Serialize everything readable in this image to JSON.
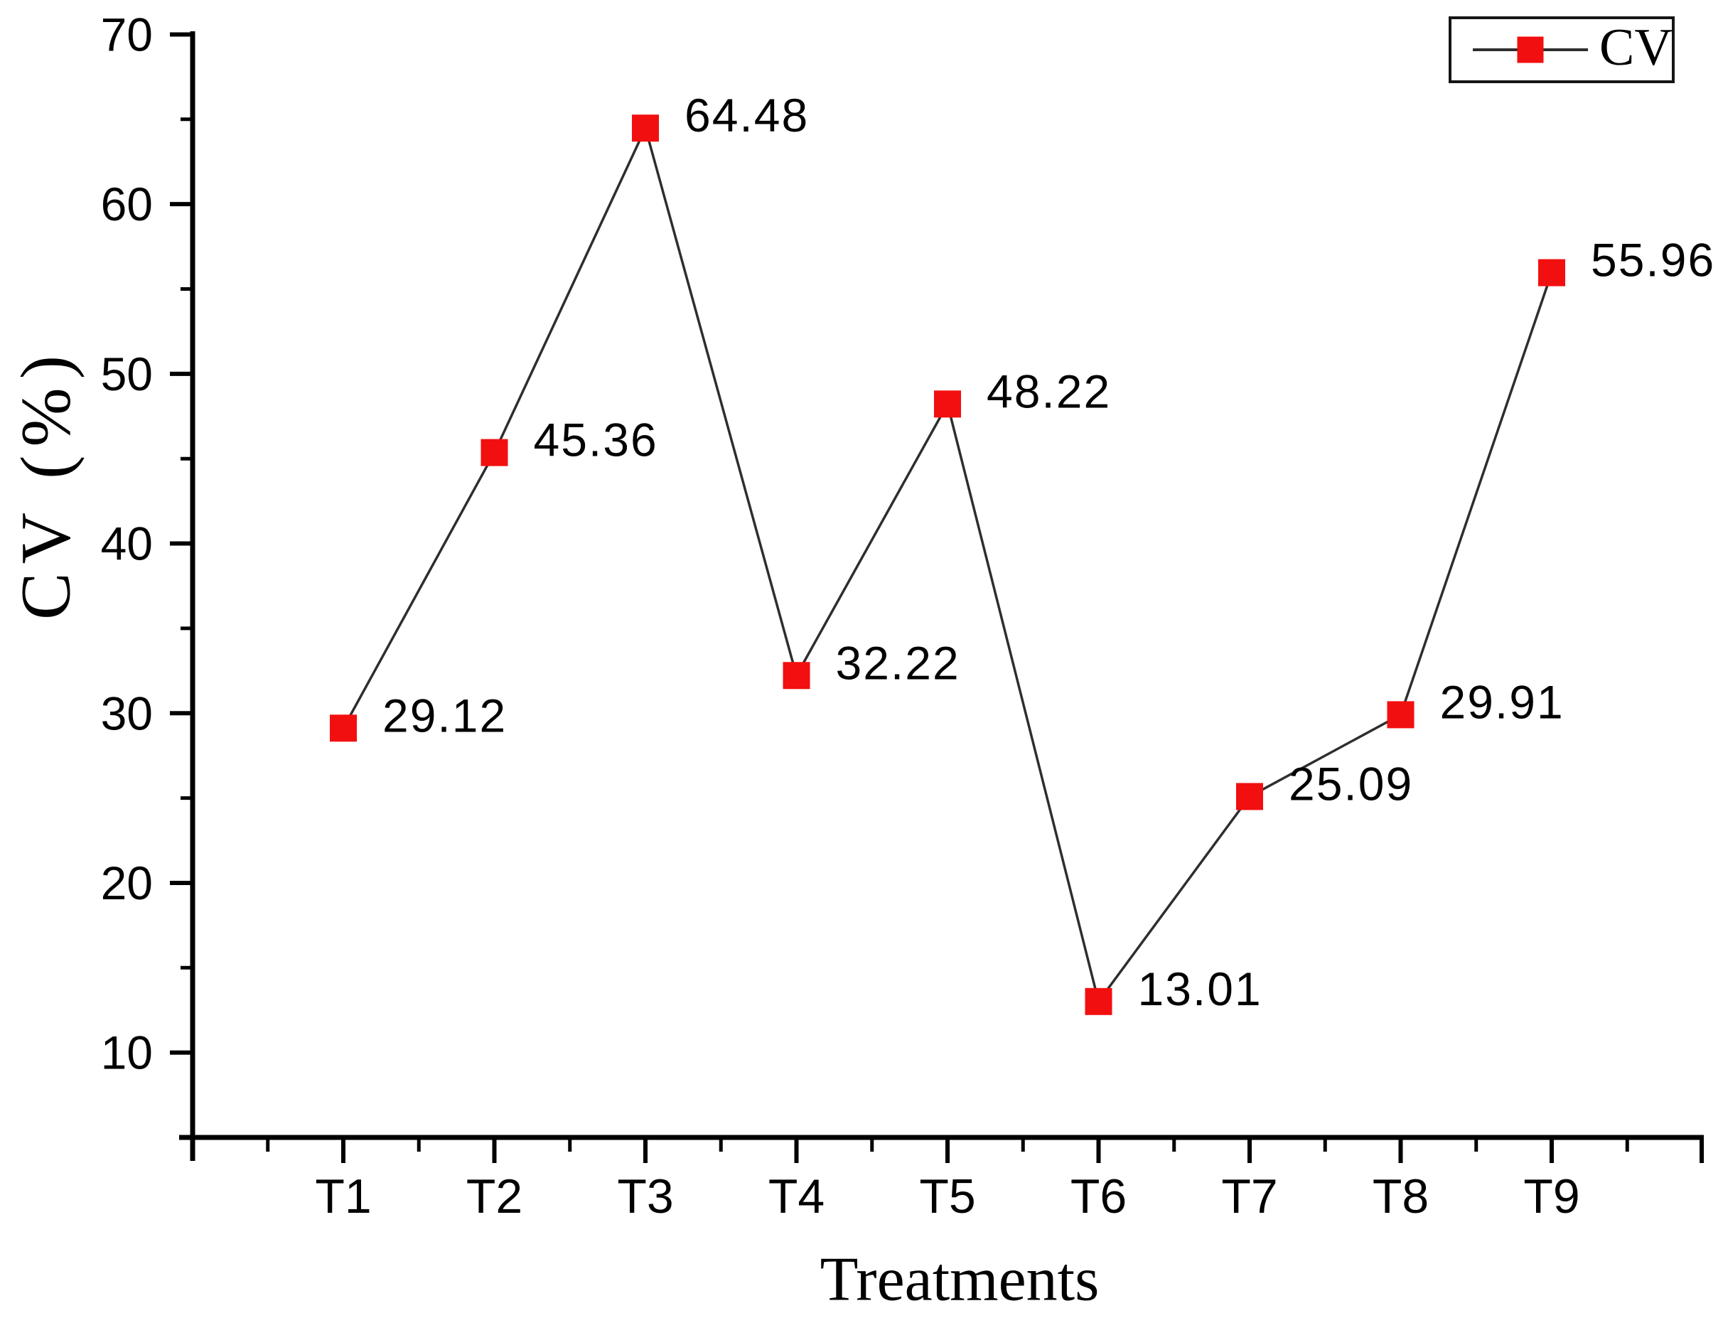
{
  "chart_data": {
    "type": "line",
    "title": "",
    "xlabel": "Treatments",
    "ylabel": "CV (%)",
    "categories": [
      "T1",
      "T2",
      "T3",
      "T4",
      "T5",
      "T6",
      "T7",
      "T8",
      "T9"
    ],
    "series": [
      {
        "name": "CV",
        "values": [
          29.12,
          45.36,
          64.48,
          32.22,
          48.22,
          13.01,
          25.09,
          29.91,
          55.96
        ],
        "point_labels": [
          "29.12",
          "45.36",
          "64.48",
          "32.22",
          "48.22",
          "13.01",
          "25.09",
          "29.91",
          "55.96"
        ],
        "marker": "square",
        "marker_color": "#f20f0f",
        "line_color": "#2e2e2e"
      }
    ],
    "ylim": [
      5,
      70
    ],
    "yticks": [
      10,
      20,
      30,
      40,
      50,
      60,
      70
    ],
    "yticks_minor": [
      5,
      15,
      25,
      35,
      45,
      55,
      65
    ],
    "grid": false,
    "axis_color": "#000000",
    "legend": {
      "position": "top-right",
      "entries": [
        "CV"
      ]
    }
  }
}
